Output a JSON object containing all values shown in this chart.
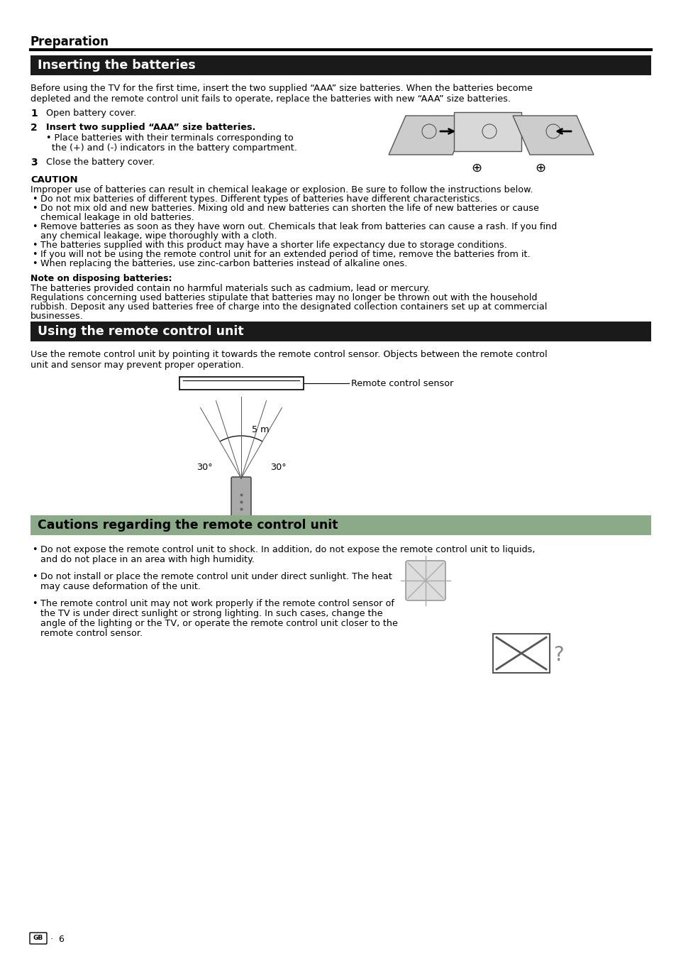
{
  "page_bg": "#ffffff",
  "section1_header_bg": "#1a1a1a",
  "section2_header_bg": "#1a1a1a",
  "section3_header_bg": "#7a9a7a",
  "section_header_color": "#ffffff",
  "section3_header_color": "#000000",
  "body_color": "#000000",
  "preparation_title": "Preparation",
  "section1_title": "Inserting the batteries",
  "section2_title": "Using the remote control unit",
  "section3_title": "Cautions regarding the remote control unit",
  "intro1_line1": "Before using the TV for the first time, insert the two supplied “AAA” size batteries. When the batteries become",
  "intro1_line2": "depleted and the remote control unit fails to operate, replace the batteries with new “AAA” size batteries.",
  "step1": "Open battery cover.",
  "step2": "Insert two supplied “AAA” size batteries.",
  "step2_bullet_line1": "• Place batteries with their terminals corresponding to",
  "step2_bullet_line2": "  the (+) and (-) indicators in the battery compartment.",
  "step3": "Close the battery cover.",
  "caution_title": "CAUTION",
  "caution_intro": "Improper use of batteries can result in chemical leakage or explosion. Be sure to follow the instructions below.",
  "caution_bullets": [
    "Do not mix batteries of different types. Different types of batteries have different characteristics.",
    "Do not mix old and new batteries. Mixing old and new batteries can shorten the life of new batteries or cause",
    "chemical leakage in old batteries.",
    "Remove batteries as soon as they have worn out. Chemicals that leak from batteries can cause a rash. If you find",
    "any chemical leakage, wipe thoroughly with a cloth.",
    "The batteries supplied with this product may have a shorter life expectancy due to storage conditions.",
    "If you will not be using the remote control unit for an extended period of time, remove the batteries from it.",
    "When replacing the batteries, use zinc-carbon batteries instead of alkaline ones."
  ],
  "caution_bullet_flags": [
    true,
    true,
    false,
    true,
    false,
    true,
    true,
    true
  ],
  "note_title": "Note on disposing batteries:",
  "note_text1": "The batteries provided contain no harmful materials such as cadmium, lead or mercury.",
  "note_text2_line1": "Regulations concerning used batteries stipulate that batteries may no longer be thrown out with the household",
  "note_text2_line2": "rubbish. Deposit any used batteries free of charge into the designated collection containers set up at commercial",
  "note_text2_line3": "businesses.",
  "section2_intro_line1": "Use the remote control unit by pointing it towards the remote control sensor. Objects between the remote control",
  "section2_intro_line2": "unit and sensor may prevent proper operation.",
  "remote_label": "Remote control sensor",
  "angle_label1": "30°",
  "angle_label2": "30°",
  "distance_label": "5 m",
  "s3b1_lines": [
    "Do not expose the remote control unit to shock. In addition, do not expose the remote control unit to liquids,",
    "and do not place in an area with high humidity."
  ],
  "s3b2_lines": [
    "Do not install or place the remote control unit under direct sunlight. The heat",
    "may cause deformation of the unit."
  ],
  "s3b3_lines": [
    "The remote control unit may not work properly if the remote control sensor of",
    "the TV is under direct sunlight or strong lighting. In such cases, change the",
    "angle of the lighting or the TV, or operate the remote control unit closer to the",
    "remote control sensor."
  ],
  "footer_text": "6"
}
